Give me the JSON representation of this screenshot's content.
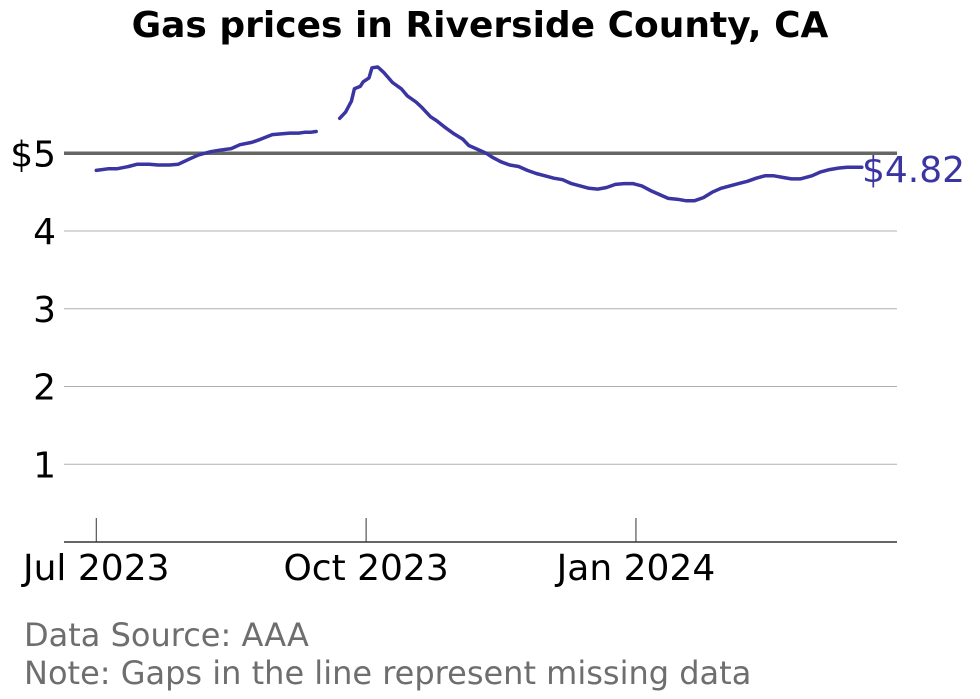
{
  "chart_data": {
    "type": "line",
    "title": "Gas prices in Riverside County, CA",
    "xlabel": "",
    "ylabel": "",
    "ylim": [
      0,
      6.2
    ],
    "y_ticks": [
      {
        "value": 1,
        "label": "1"
      },
      {
        "value": 2,
        "label": "2"
      },
      {
        "value": 3,
        "label": "3"
      },
      {
        "value": 4,
        "label": "4"
      },
      {
        "value": 5,
        "label": "$5"
      }
    ],
    "x_ticks": [
      {
        "date": "2023-07-01",
        "label": "Jul 2023"
      },
      {
        "date": "2023-10-01",
        "label": "Oct 2023"
      },
      {
        "date": "2024-01-01",
        "label": "Jan 2024"
      }
    ],
    "xlim": [
      "2023-06-20",
      "2024-03-30"
    ],
    "reference_line": {
      "value": 5,
      "color": "#666666"
    },
    "line_color": "#3a35a0",
    "end_label": "$4.82",
    "series": [
      {
        "segments": [
          {
            "x": [
              "2023-07-01",
              "2023-07-05",
              "2023-07-08",
              "2023-07-12",
              "2023-07-15",
              "2023-07-19",
              "2023-07-22",
              "2023-07-26",
              "2023-07-29",
              "2023-08-02",
              "2023-08-05",
              "2023-08-09",
              "2023-08-12",
              "2023-08-16",
              "2023-08-19",
              "2023-08-23",
              "2023-08-26",
              "2023-08-30",
              "2023-09-02",
              "2023-09-05",
              "2023-09-08",
              "2023-09-10",
              "2023-09-11",
              "2023-09-12",
              "2023-09-14"
            ],
            "y": [
              4.78,
              4.8,
              4.8,
              4.83,
              4.86,
              4.86,
              4.85,
              4.85,
              4.86,
              4.93,
              4.98,
              5.02,
              5.04,
              5.06,
              5.11,
              5.14,
              5.18,
              5.24,
              5.25,
              5.26,
              5.26,
              5.27,
              5.27,
              5.27,
              5.28
            ]
          },
          {
            "x": [
              "2023-09-22",
              "2023-09-24",
              "2023-09-26",
              "2023-09-27",
              "2023-09-29",
              "2023-09-30",
              "2023-10-02",
              "2023-10-03",
              "2023-10-05",
              "2023-10-07",
              "2023-10-10",
              "2023-10-13",
              "2023-10-15",
              "2023-10-18",
              "2023-10-20",
              "2023-10-23",
              "2023-10-25",
              "2023-10-28",
              "2023-10-31",
              "2023-11-03",
              "2023-11-05",
              "2023-11-08",
              "2023-11-11",
              "2023-11-13",
              "2023-11-16",
              "2023-11-19",
              "2023-11-22",
              "2023-11-25",
              "2023-11-28",
              "2023-12-01",
              "2023-12-04",
              "2023-12-07",
              "2023-12-10",
              "2023-12-13",
              "2023-12-16",
              "2023-12-19",
              "2023-12-22",
              "2023-12-25",
              "2023-12-28",
              "2023-12-31",
              "2024-01-03",
              "2024-01-06",
              "2024-01-09",
              "2024-01-12",
              "2024-01-15",
              "2024-01-18",
              "2024-01-21",
              "2024-01-24",
              "2024-01-27",
              "2024-01-30",
              "2024-02-02",
              "2024-02-05",
              "2024-02-08",
              "2024-02-11",
              "2024-02-14",
              "2024-02-17",
              "2024-02-20",
              "2024-02-23",
              "2024-02-26",
              "2024-03-01",
              "2024-03-04",
              "2024-03-07",
              "2024-03-10",
              "2024-03-13",
              "2024-03-16",
              "2024-03-18"
            ],
            "y": [
              5.45,
              5.53,
              5.67,
              5.83,
              5.86,
              5.92,
              5.97,
              6.1,
              6.11,
              6.04,
              5.91,
              5.83,
              5.74,
              5.66,
              5.59,
              5.47,
              5.42,
              5.33,
              5.25,
              5.18,
              5.1,
              5.05,
              5.0,
              4.95,
              4.89,
              4.85,
              4.83,
              4.78,
              4.74,
              4.71,
              4.68,
              4.66,
              4.61,
              4.58,
              4.55,
              4.54,
              4.56,
              4.6,
              4.61,
              4.61,
              4.58,
              4.52,
              4.47,
              4.42,
              4.41,
              4.39,
              4.39,
              4.43,
              4.5,
              4.55,
              4.58,
              4.61,
              4.64,
              4.68,
              4.71,
              4.71,
              4.69,
              4.67,
              4.67,
              4.71,
              4.76,
              4.79,
              4.81,
              4.82,
              4.82,
              4.82
            ]
          }
        ]
      }
    ]
  },
  "footer": {
    "source": "Data Source: AAA",
    "note": "Note: Gaps in the line represent missing data"
  }
}
